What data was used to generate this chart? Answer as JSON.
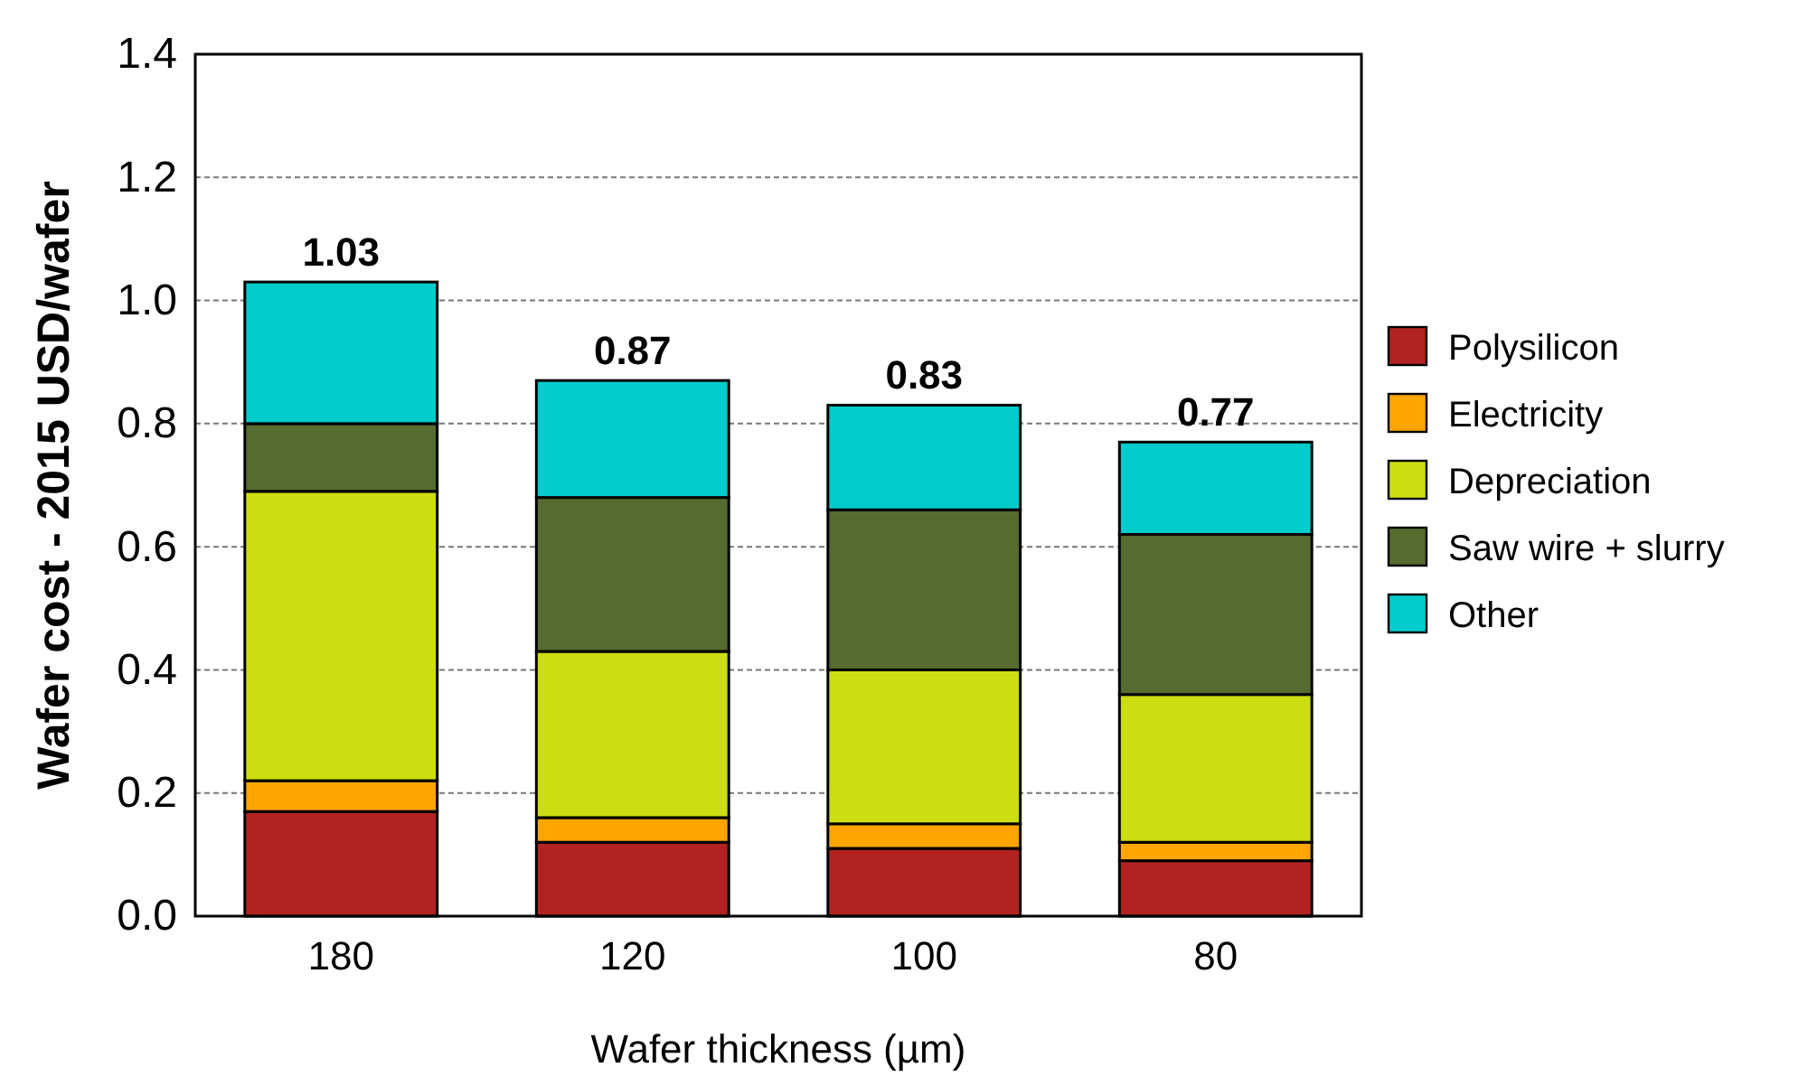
{
  "chart_data": {
    "type": "bar",
    "stacked": true,
    "xlabel": "Wafer thickness (µm)",
    "ylabel": "Wafer cost - 2015 USD/wafer",
    "categories": [
      "180",
      "120",
      "100",
      "80"
    ],
    "series": [
      {
        "name": "Polysilicon",
        "color": "#b22222",
        "values": [
          0.17,
          0.12,
          0.11,
          0.09
        ]
      },
      {
        "name": "Electricity",
        "color": "#ffa500",
        "values": [
          0.05,
          0.04,
          0.04,
          0.03
        ]
      },
      {
        "name": "Depreciation",
        "color": "#ccdd11",
        "values": [
          0.47,
          0.27,
          0.25,
          0.24
        ]
      },
      {
        "name": "Saw wire + slurry",
        "color": "#556b2f",
        "values": [
          0.11,
          0.25,
          0.26,
          0.26
        ]
      },
      {
        "name": "Other",
        "color": "#00cccc",
        "values": [
          0.23,
          0.19,
          0.17,
          0.15
        ]
      }
    ],
    "totals": [
      "1.03",
      "0.87",
      "0.83",
      "0.77"
    ],
    "ylim": [
      0,
      1.4
    ],
    "yticks": [
      {
        "value": 0,
        "label": "0.0"
      },
      {
        "value": 0.2,
        "label": "0.2"
      },
      {
        "value": 0.4,
        "label": "0.4"
      },
      {
        "value": 0.6,
        "label": "0.6"
      },
      {
        "value": 0.8,
        "label": "0.8"
      },
      {
        "value": 1,
        "label": "1.0"
      },
      {
        "value": 1.2,
        "label": "1.2"
      },
      {
        "value": 1.4,
        "label": "1.4"
      }
    ],
    "grid": "y",
    "legend": "right"
  }
}
